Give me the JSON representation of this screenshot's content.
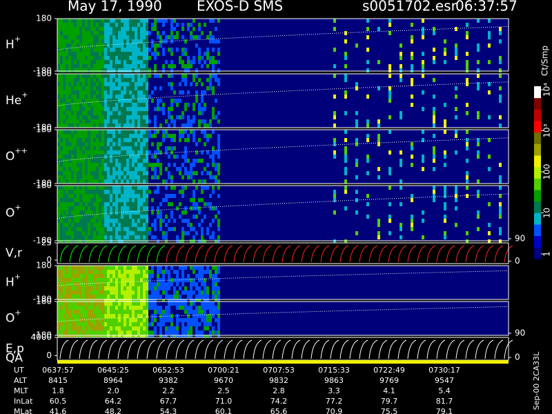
{
  "chart_data": {
    "type": "spectrogram",
    "header": {
      "date": "May 17, 1990",
      "instrument": "EXOS-D SMS",
      "file": "s0051702.esr",
      "time": "06:37:57"
    },
    "panels": [
      {
        "label": "H",
        "charge": "+",
        "ylim": [
          -180,
          180
        ],
        "yticks": [
          180,
          -180
        ]
      },
      {
        "label": "He",
        "charge": "+",
        "ylim": [
          -180,
          180
        ],
        "yticks": [
          180,
          -180
        ]
      },
      {
        "label": "O",
        "charge": "++",
        "ylim": [
          -180,
          180
        ],
        "yticks": [
          180,
          -180
        ]
      },
      {
        "label": "O",
        "charge": "+",
        "ylim": [
          -180,
          180
        ],
        "yticks": [
          180,
          -180
        ]
      },
      {
        "label": "V,r",
        "ylim": [
          -5,
          25
        ],
        "yticks": [
          25,
          0
        ],
        "y2lim": [
          -10,
          90
        ],
        "y2ticks": [
          90,
          0
        ]
      },
      {
        "label": "H",
        "charge": "+",
        "ylim": [
          -180,
          180
        ],
        "yticks": [
          180,
          -180
        ]
      },
      {
        "label": "O",
        "charge": "+",
        "ylim": [
          -180,
          180
        ],
        "yticks": [
          180,
          -180
        ]
      },
      {
        "label": "E,p",
        "ylim": [
          -1000,
          4000
        ],
        "yticks": [
          4000,
          0
        ],
        "y2lim": [
          -10,
          90
        ],
        "y2ticks": [
          90,
          0
        ]
      }
    ],
    "qa_label": "QA",
    "colorbar": {
      "label": "Ct/Smp",
      "log": true,
      "lim": [
        1,
        10000
      ],
      "ticks": [
        1,
        10,
        100,
        {
          "value": 1000,
          "label": "10³"
        },
        {
          "value": 10000,
          "label": "10⁴"
        }
      ],
      "colors": [
        "#000080",
        "#0000c8",
        "#0050ff",
        "#00b4c8",
        "#007850",
        "#00a000",
        "#50d000",
        "#b4f000",
        "#f0f000",
        "#a0a000",
        "#707000",
        "#ff0000",
        "#c00000",
        "#800000",
        "#ffffff"
      ]
    },
    "orbit_table": {
      "rows": [
        {
          "name": "UT",
          "values": [
            "0637:57",
            "0645:25",
            "0652:53",
            "0700:21",
            "0707:53",
            "0715:33",
            "0722:49",
            "0730:17"
          ]
        },
        {
          "name": "ALT",
          "values": [
            "8415",
            "8964",
            "9382",
            "9670",
            "9832",
            "9863",
            "9769",
            "9547"
          ]
        },
        {
          "name": "MLT",
          "values": [
            "1.8",
            "2.0",
            "2.2",
            "2.5",
            "2.8",
            "3.3",
            "4.1",
            "5.4"
          ]
        },
        {
          "name": "InLat",
          "values": [
            "60.5",
            "64.2",
            "67.7",
            "71.0",
            "74.2",
            "77.2",
            "79.7",
            "81.7"
          ]
        },
        {
          "name": "MLat",
          "values": [
            "41.6",
            "48.2",
            "54.3",
            "60.1",
            "65.6",
            "70.9",
            "75.5",
            "79.1"
          ]
        }
      ]
    },
    "footer": "Sep-00 2CA33L"
  }
}
